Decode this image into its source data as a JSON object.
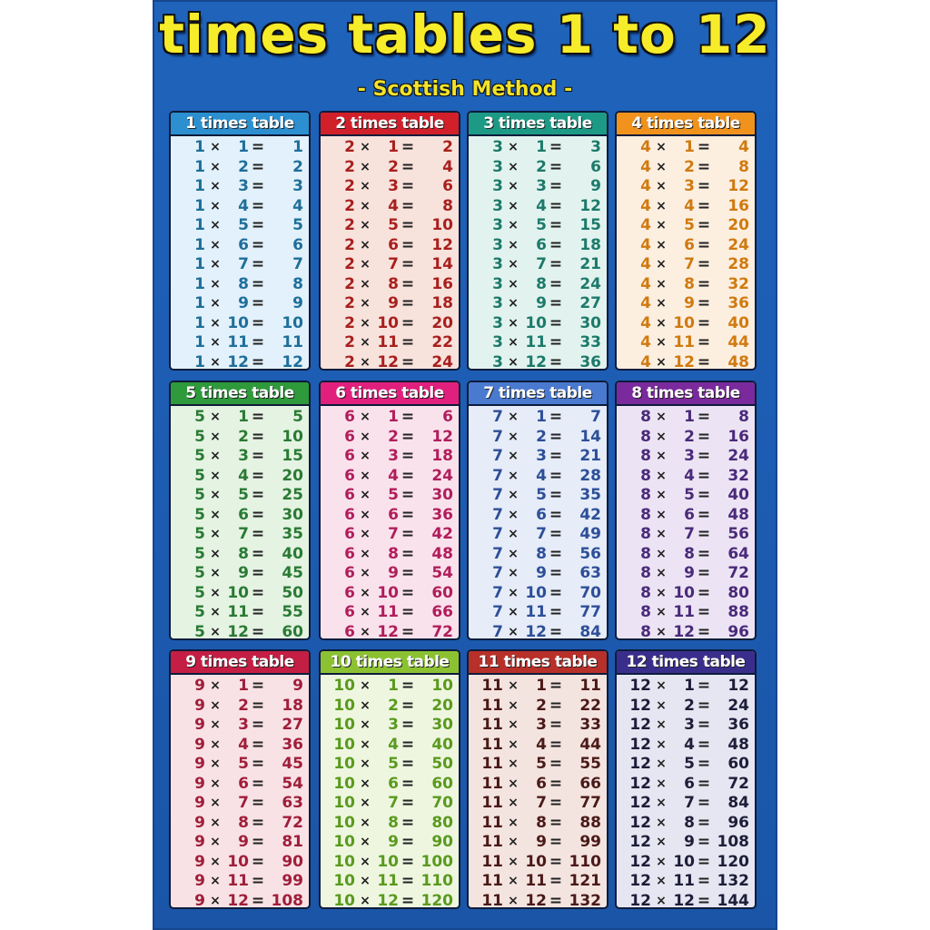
{
  "title": "times tables 1 to 12",
  "subtitle": "- Scottish Method -",
  "colors": {
    "background": "#1c5bb0",
    "title": "#f7ec2a"
  },
  "tables": [
    {
      "label": "1 times table",
      "n": 1,
      "header_color": "#2b8fd0",
      "body_color": "#e2f1fb",
      "number_color": "#1f6f9a"
    },
    {
      "label": "2 times table",
      "n": 2,
      "header_color": "#d2202a",
      "body_color": "#f8e2dc",
      "number_color": "#a8201e"
    },
    {
      "label": "3 times table",
      "n": 3,
      "header_color": "#1d9a86",
      "body_color": "#e2f3ef",
      "number_color": "#1d7a6a"
    },
    {
      "label": "4 times table",
      "n": 4,
      "header_color": "#f0921c",
      "body_color": "#fcefe0",
      "number_color": "#d07a10"
    },
    {
      "label": "5 times table",
      "n": 5,
      "header_color": "#2f9a3c",
      "body_color": "#e4f3e2",
      "number_color": "#2a7a34"
    },
    {
      "label": "6 times table",
      "n": 6,
      "header_color": "#e0207c",
      "body_color": "#fae2ec",
      "number_color": "#b01e5c"
    },
    {
      "label": "7 times table",
      "n": 7,
      "header_color": "#4a7ad0",
      "body_color": "#e6ecf8",
      "number_color": "#2d4f98"
    },
    {
      "label": "8 times table",
      "n": 8,
      "header_color": "#7a2a9c",
      "body_color": "#ece4f4",
      "number_color": "#4a2a7a"
    },
    {
      "label": "9 times table",
      "n": 9,
      "header_color": "#c41e44",
      "body_color": "#f8e2e6",
      "number_color": "#a01e3a"
    },
    {
      "label": "10 times table",
      "n": 10,
      "header_color": "#8cc232",
      "body_color": "#eef6e0",
      "number_color": "#5a9a1e"
    },
    {
      "label": "11 times table",
      "n": 11,
      "header_color": "#b8302a",
      "body_color": "#f4e4e0",
      "number_color": "#4a1a18"
    },
    {
      "label": "12 times table",
      "n": 12,
      "header_color": "#3a2e8c",
      "body_color": "#e6e6f2",
      "number_color": "#1e1e3a"
    }
  ],
  "symbols": {
    "times": "×",
    "equals": "="
  }
}
